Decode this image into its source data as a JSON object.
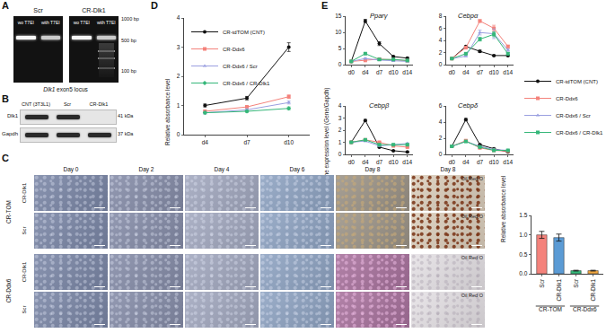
{
  "figure": {
    "A": {
      "letter": "A",
      "groups": [
        {
          "label": "Scr",
          "lanes": [
            "wo T7EI",
            "with T7EI"
          ]
        },
        {
          "label": "CR-Dlk1",
          "lanes": [
            "wo T7EI",
            "with T7EI"
          ]
        }
      ],
      "ladder": [
        "1000 bp",
        "500 bp",
        "100 bp"
      ],
      "caption": "Dlk1 exon5 locus"
    },
    "B": {
      "letter": "B",
      "lanes": [
        "CNT (3T3L1)",
        "Scr",
        "CR-Dlk1"
      ],
      "rows": [
        {
          "label": "Dlk1",
          "size": "41 kDa"
        },
        {
          "label": "Gapdh",
          "size": "37 kDa"
        }
      ]
    },
    "C": {
      "letter": "C",
      "columns": [
        "Day 0",
        "Day 2",
        "Day 4",
        "Day 6",
        "Day 8",
        "Day 8"
      ],
      "stain": "Oil Red O",
      "groups": [
        {
          "label": "CR-TOM",
          "rows": [
            "CR-Dlk1",
            "Scr"
          ]
        },
        {
          "label": "CR-Ddx6",
          "rows": [
            "CR-Dlk1",
            "Scr"
          ]
        }
      ]
    }
  },
  "chart_data": [
    {
      "panel": "D",
      "type": "line",
      "categories": [
        "d4",
        "d7",
        "d10"
      ],
      "ylabel": "Relative absorbance level",
      "ylim": [
        0,
        4
      ],
      "yticks": [
        0,
        1,
        2,
        3,
        4
      ],
      "legend": "upper left",
      "series": [
        {
          "name": "CR-tdTOM (CNT)",
          "color": "#111111",
          "marker": "circle",
          "values": [
            1.0,
            1.25,
            3.0
          ],
          "errors": [
            0.05,
            0.06,
            0.15
          ]
        },
        {
          "name": "CR-Ddx6",
          "color": "#f4827b",
          "marker": "square",
          "values": [
            0.8,
            0.95,
            1.3
          ],
          "errors": [
            0.04,
            0.05,
            0.06
          ]
        },
        {
          "name": "CR-Ddx6 / Scr",
          "color": "#9a9fe0",
          "marker": "triangle",
          "values": [
            0.75,
            0.85,
            1.1
          ],
          "errors": [
            0.04,
            0.04,
            0.05
          ]
        },
        {
          "name": "CR-Ddx6 / CR-Dlk1",
          "color": "#35b779",
          "marker": "diamond",
          "values": [
            0.75,
            0.8,
            0.9
          ],
          "errors": [
            0.04,
            0.04,
            0.05
          ]
        }
      ]
    },
    {
      "panel": "E",
      "type": "line",
      "title": "Pparγ",
      "categories": [
        "d0",
        "d4",
        "d7",
        "d10",
        "d14"
      ],
      "ylabel": "Relative gene expression level (Gene/Gapdh)",
      "ylim": [
        0,
        15
      ],
      "yticks": [
        0,
        5,
        10,
        15
      ],
      "legend": "right",
      "series": [
        {
          "name": "CR-tdTOM (CNT)",
          "color": "#111111",
          "marker": "circle",
          "values": [
            1,
            13.5,
            6.5,
            2.5,
            2
          ],
          "errors": [
            0.1,
            0.5,
            0.6,
            0.2,
            0.2
          ]
        },
        {
          "name": "CR-Ddx6",
          "color": "#f4827b",
          "marker": "square",
          "values": [
            1,
            1.3,
            1.7,
            1.5,
            1.2
          ],
          "errors": [
            0.1,
            0.1,
            0.2,
            0.1,
            0.1
          ]
        },
        {
          "name": "CR-Ddx6 / Scr",
          "color": "#9a9fe0",
          "marker": "triangle",
          "values": [
            1,
            1.9,
            1.4,
            1.1,
            1.0
          ],
          "errors": [
            0.1,
            0.2,
            0.1,
            0.1,
            0.1
          ]
        },
        {
          "name": "CR-Ddx6 / CR-Dlk1",
          "color": "#35b779",
          "marker": "square",
          "values": [
            1,
            3.4,
            1.6,
            1.6,
            1.3
          ],
          "errors": [
            0.1,
            0.2,
            0.2,
            0.1,
            0.1
          ]
        }
      ]
    },
    {
      "type": "line",
      "title": "Cebpα",
      "categories": [
        "d0",
        "d4",
        "d7",
        "d10",
        "d14"
      ],
      "ylim": [
        0,
        8
      ],
      "yticks": [
        0,
        2,
        4,
        6,
        8
      ],
      "series": [
        {
          "name": "CR-tdTOM (CNT)",
          "color": "#111111",
          "marker": "circle",
          "values": [
            1,
            3.0,
            2.2,
            1.5,
            1.5
          ],
          "errors": [
            0.05,
            0.1,
            0.2,
            0.1,
            0.1
          ]
        },
        {
          "name": "CR-Ddx6",
          "color": "#f4827b",
          "marker": "square",
          "values": [
            1,
            2.8,
            7.2,
            6.0,
            3.0
          ],
          "errors": [
            0.05,
            0.1,
            0.2,
            0.5,
            0.2
          ]
        },
        {
          "name": "CR-Ddx6 / Scr",
          "color": "#9a9fe0",
          "marker": "triangle",
          "values": [
            1,
            1.4,
            5.3,
            5.1,
            2.4
          ],
          "errors": [
            0.05,
            0.1,
            0.4,
            0.8,
            0.2
          ]
        },
        {
          "name": "CR-Ddx6 / CR-Dlk1",
          "color": "#35b779",
          "marker": "square",
          "values": [
            1,
            1.8,
            4.2,
            5.0,
            1.8
          ],
          "errors": [
            0.05,
            0.1,
            0.3,
            0.4,
            0.2
          ]
        }
      ]
    },
    {
      "type": "line",
      "title": "Cebpβ",
      "categories": [
        "d0",
        "d4",
        "d7",
        "d10",
        "d14"
      ],
      "ylim": [
        0,
        4
      ],
      "yticks": [
        0,
        1,
        2,
        3,
        4
      ],
      "series": [
        {
          "name": "CR-tdTOM (CNT)",
          "color": "#111111",
          "marker": "circle",
          "values": [
            1,
            2.8,
            0.6,
            0.3,
            0.2
          ],
          "errors": [
            0.03,
            0.08,
            0.05,
            0.03,
            0.03
          ]
        },
        {
          "name": "CR-Ddx6",
          "color": "#f4827b",
          "marker": "square",
          "values": [
            1,
            1.2,
            1.0,
            0.7,
            0.6
          ],
          "errors": [
            0.03,
            0.05,
            0.05,
            0.04,
            0.04
          ]
        },
        {
          "name": "CR-Ddx6 / Scr",
          "color": "#9a9fe0",
          "marker": "triangle",
          "values": [
            1,
            1.1,
            0.7,
            0.8,
            0.9
          ],
          "errors": [
            0.03,
            0.05,
            0.05,
            0.04,
            0.04
          ]
        },
        {
          "name": "CR-Ddx6 / CR-Dlk1",
          "color": "#35b779",
          "marker": "square",
          "values": [
            1,
            1.2,
            0.8,
            0.8,
            0.8
          ],
          "errors": [
            0.03,
            0.05,
            0.05,
            0.04,
            0.04
          ]
        }
      ]
    },
    {
      "type": "line",
      "title": "Cebpδ",
      "categories": [
        "d0",
        "d4",
        "d7",
        "d10",
        "d14"
      ],
      "ylim": [
        0,
        6
      ],
      "yticks": [
        0,
        2,
        4,
        6
      ],
      "series": [
        {
          "name": "CR-tdTOM (CNT)",
          "color": "#111111",
          "marker": "circle",
          "values": [
            1,
            4.3,
            1.2,
            0.7,
            0.3
          ],
          "errors": [
            0.05,
            0.15,
            0.1,
            0.05,
            0.05
          ]
        },
        {
          "name": "CR-Ddx6",
          "color": "#f4827b",
          "marker": "square",
          "values": [
            1,
            1.7,
            0.8,
            0.5,
            0.4
          ],
          "errors": [
            0.05,
            0.1,
            0.05,
            0.05,
            0.05
          ]
        },
        {
          "name": "CR-Ddx6 / Scr",
          "color": "#9a9fe0",
          "marker": "triangle",
          "values": [
            1,
            1.6,
            1.0,
            0.6,
            0.5
          ],
          "errors": [
            0.05,
            0.1,
            0.05,
            0.05,
            0.05
          ]
        },
        {
          "name": "CR-Ddx6 / CR-Dlk1",
          "color": "#35b779",
          "marker": "square",
          "values": [
            1,
            1.6,
            0.9,
            0.5,
            0.5
          ],
          "errors": [
            0.05,
            0.1,
            0.05,
            0.05,
            0.05
          ]
        }
      ]
    },
    {
      "type": "bar",
      "categories": [
        "Scr",
        "CR-Dlk1",
        "Scr",
        "CR-Dlk1"
      ],
      "group_labels": [
        "CR-TOM",
        "CR-TOM",
        "CR-Ddx6",
        "CR-Ddx6"
      ],
      "ylabel": "Relative absorbance level",
      "values": [
        1.0,
        0.93,
        0.08,
        0.08
      ],
      "errors": [
        0.09,
        0.09,
        0.01,
        0.01
      ],
      "colors": [
        "#f4827b",
        "#5b9bd5",
        "#35b779",
        "#f0a640"
      ],
      "ylim": [
        0,
        1.5
      ],
      "yticks": [
        {
          "value": 0,
          "label": "0.0"
        },
        0.5,
        {
          "value": 1,
          "label": "1.0"
        },
        1.5
      ]
    }
  ]
}
